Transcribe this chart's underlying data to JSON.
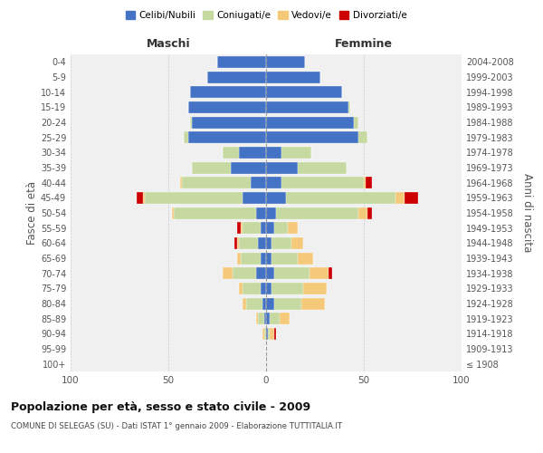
{
  "age_groups": [
    "100+",
    "95-99",
    "90-94",
    "85-89",
    "80-84",
    "75-79",
    "70-74",
    "65-69",
    "60-64",
    "55-59",
    "50-54",
    "45-49",
    "40-44",
    "35-39",
    "30-34",
    "25-29",
    "20-24",
    "15-19",
    "10-14",
    "5-9",
    "0-4"
  ],
  "birth_years": [
    "≤ 1908",
    "1909-1913",
    "1914-1918",
    "1919-1923",
    "1924-1928",
    "1929-1933",
    "1934-1938",
    "1939-1943",
    "1944-1948",
    "1949-1953",
    "1954-1958",
    "1959-1963",
    "1964-1968",
    "1969-1973",
    "1974-1978",
    "1979-1983",
    "1984-1988",
    "1989-1993",
    "1994-1998",
    "1999-2003",
    "2004-2008"
  ],
  "colors": {
    "celibi": "#4472C4",
    "coniugati": "#C5D9A0",
    "vedovi": "#F5C97A",
    "divorziati": "#CC0000"
  },
  "maschi": {
    "celibi": [
      0,
      0,
      0,
      1,
      2,
      3,
      5,
      3,
      4,
      3,
      5,
      12,
      8,
      18,
      14,
      40,
      38,
      40,
      39,
      30,
      25
    ],
    "coniugati": [
      0,
      0,
      1,
      3,
      8,
      9,
      12,
      10,
      10,
      9,
      42,
      50,
      35,
      20,
      8,
      2,
      1,
      0,
      0,
      0,
      0
    ],
    "vedovi": [
      0,
      0,
      1,
      1,
      2,
      2,
      5,
      2,
      1,
      1,
      1,
      1,
      1,
      0,
      0,
      0,
      0,
      0,
      0,
      0,
      0
    ],
    "divorziati": [
      0,
      0,
      0,
      0,
      0,
      0,
      0,
      0,
      1,
      2,
      0,
      3,
      0,
      0,
      0,
      0,
      0,
      0,
      0,
      0,
      0
    ]
  },
  "femmine": {
    "celibi": [
      0,
      0,
      1,
      2,
      4,
      3,
      4,
      3,
      3,
      4,
      5,
      10,
      8,
      16,
      8,
      47,
      45,
      42,
      39,
      28,
      20
    ],
    "coniugati": [
      0,
      0,
      1,
      5,
      14,
      16,
      18,
      13,
      10,
      7,
      42,
      56,
      42,
      25,
      15,
      5,
      2,
      1,
      0,
      0,
      0
    ],
    "vedovi": [
      0,
      0,
      2,
      5,
      12,
      12,
      10,
      8,
      6,
      5,
      5,
      5,
      1,
      0,
      0,
      0,
      0,
      0,
      0,
      0,
      0
    ],
    "divorziati": [
      0,
      0,
      1,
      0,
      0,
      0,
      2,
      0,
      0,
      0,
      2,
      7,
      3,
      0,
      0,
      0,
      0,
      0,
      0,
      0,
      0
    ]
  },
  "xlim": 100,
  "title": "Popolazione per età, sesso e stato civile - 2009",
  "subtitle": "COMUNE DI SELEGAS (SU) - Dati ISTAT 1° gennaio 2009 - Elaborazione TUTTITALIA.IT",
  "ylabel_left": "Fasce di età",
  "ylabel_right": "Anni di nascita",
  "xlabel_maschi": "Maschi",
  "xlabel_femmine": "Femmine",
  "legend_labels": [
    "Celibi/Nubili",
    "Coniugati/e",
    "Vedovi/e",
    "Divorziati/e"
  ],
  "background_color": "#f0f0f0"
}
